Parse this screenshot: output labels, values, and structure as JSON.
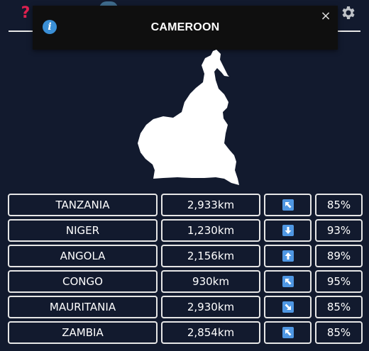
{
  "header": {
    "help_icon_label": "?",
    "left_icon": "help-icon",
    "center_icon": "globe-icon",
    "right_icon": "gear-icon",
    "help_color": "#e0214f"
  },
  "toast": {
    "icon": "info-icon",
    "icon_label": "i",
    "title": "CAMEROON",
    "close_label": "×",
    "close_icon": "close-icon"
  },
  "map": {
    "country_shape": "cameroon-silhouette"
  },
  "guesses": [
    {
      "country": "TANZANIA",
      "distance": "2,933km",
      "direction": "up-left",
      "proximity": "85%"
    },
    {
      "country": "NIGER",
      "distance": "1,230km",
      "direction": "down",
      "proximity": "93%"
    },
    {
      "country": "ANGOLA",
      "distance": "2,156km",
      "direction": "up",
      "proximity": "89%"
    },
    {
      "country": "CONGO",
      "distance": "930km",
      "direction": "up-left",
      "proximity": "95%"
    },
    {
      "country": "MAURITANIA",
      "distance": "2,930km",
      "direction": "down-right",
      "proximity": "85%"
    },
    {
      "country": "ZAMBIA",
      "distance": "2,854km",
      "direction": "up-left",
      "proximity": "85%"
    }
  ],
  "colors": {
    "background": "#121a2e",
    "toast_background": "#0f0f0f",
    "arrow_badge": "#4f97e3",
    "cell_border": "#e6e6e6"
  }
}
